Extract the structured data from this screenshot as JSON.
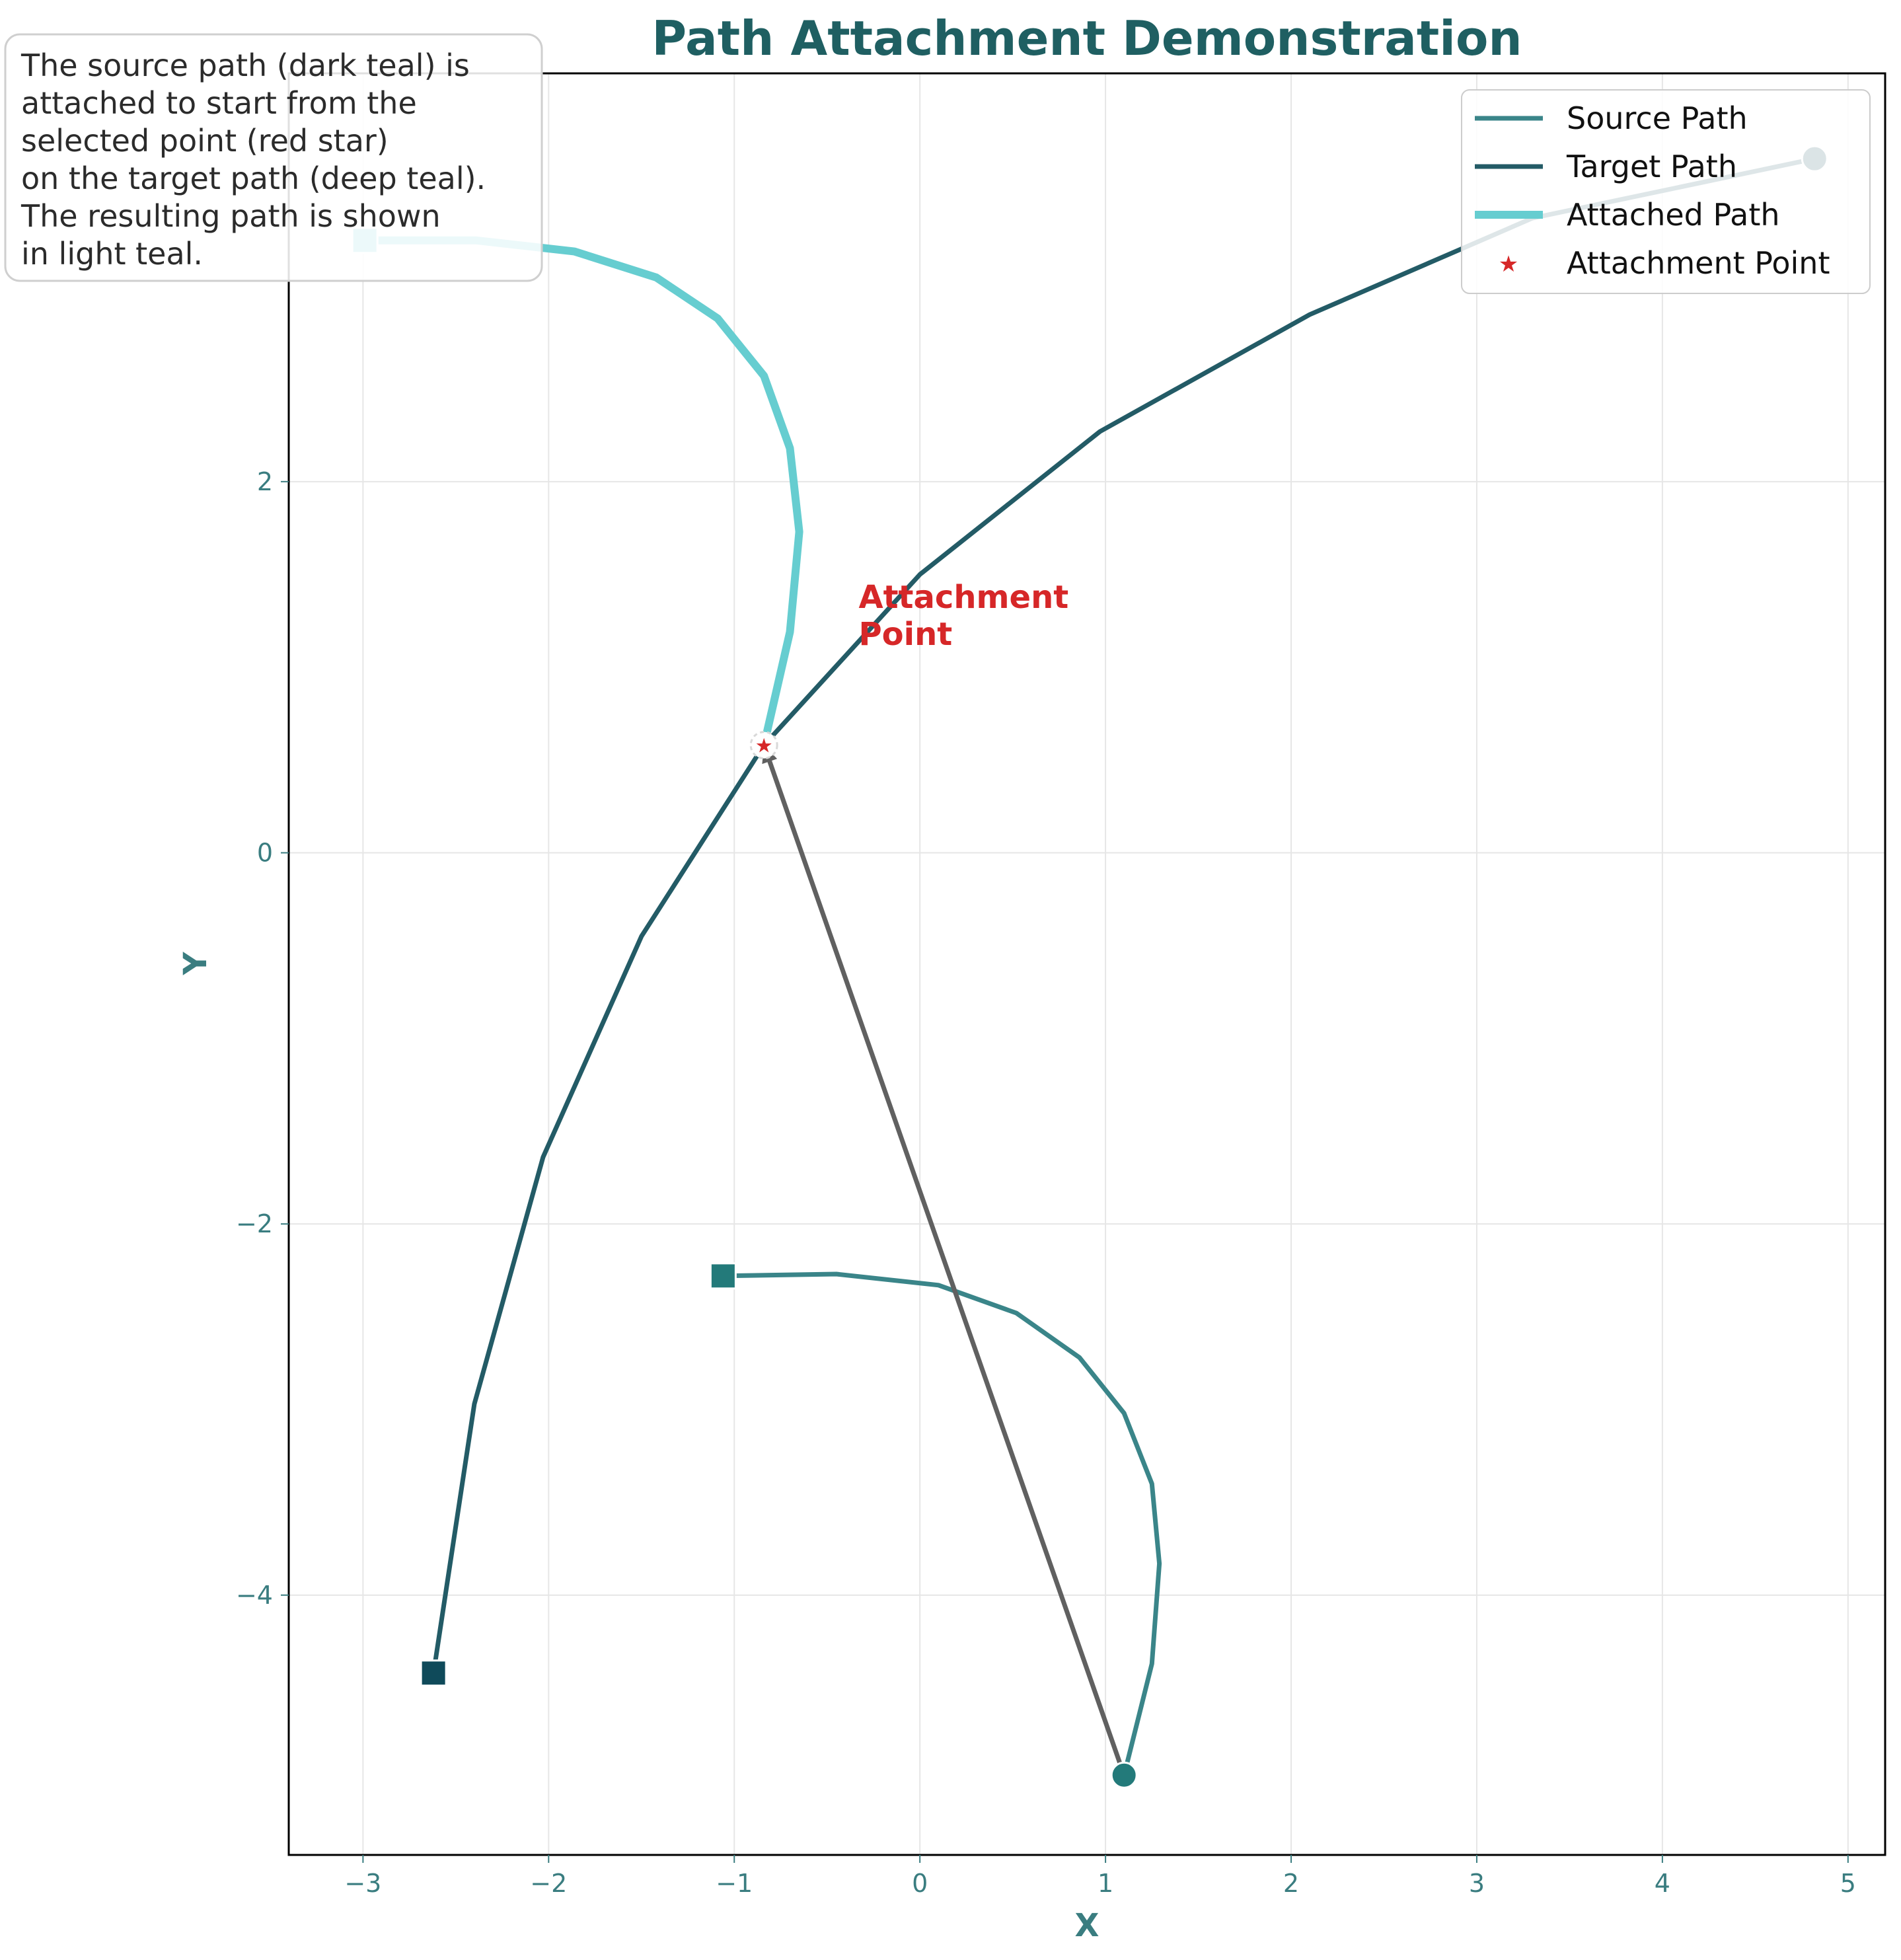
{
  "chart_data": {
    "type": "line",
    "title": "Path Attachment Demonstration",
    "xlabel": "X",
    "ylabel": "Y",
    "xlim": [
      -3.4,
      5.2
    ],
    "ylim": [
      -5.4,
      4.2
    ],
    "xticks": [
      -3,
      -2,
      -1,
      0,
      1,
      2,
      3,
      4,
      5
    ],
    "yticks": [
      -4,
      -2,
      0,
      2
    ],
    "xtick_labels": [
      "−3",
      "−2",
      "−1",
      "0",
      "1",
      "2",
      "3",
      "4",
      "5"
    ],
    "ytick_labels": [
      "−4",
      "−2",
      "0",
      "2"
    ],
    "grid": true,
    "legend_position": "top-right",
    "series": [
      {
        "name": "Source Path",
        "color": "#3a8589",
        "points": [
          [
            -1.06,
            -2.28
          ],
          [
            -0.45,
            -2.27
          ],
          [
            0.1,
            -2.33
          ],
          [
            0.52,
            -2.48
          ],
          [
            0.86,
            -2.72
          ],
          [
            1.1,
            -3.02
          ],
          [
            1.25,
            -3.4
          ],
          [
            1.29,
            -3.83
          ],
          [
            1.25,
            -4.37
          ],
          [
            1.1,
            -4.97
          ]
        ]
      },
      {
        "name": "Target Path",
        "color": "#235b66",
        "points": [
          [
            -2.62,
            -4.42
          ],
          [
            -2.4,
            -2.97
          ],
          [
            -2.03,
            -1.64
          ],
          [
            -1.5,
            -0.45
          ],
          [
            -0.84,
            0.58
          ],
          [
            0.0,
            1.5
          ],
          [
            0.97,
            2.27
          ],
          [
            2.1,
            2.9
          ],
          [
            3.3,
            3.42
          ],
          [
            4.82,
            3.74
          ]
        ]
      },
      {
        "name": "Attached Path",
        "color": "#66cdd0",
        "points": [
          [
            -0.84,
            0.58
          ],
          [
            -0.7,
            1.19
          ],
          [
            -0.65,
            1.73
          ],
          [
            -0.7,
            2.18
          ],
          [
            -0.84,
            2.57
          ],
          [
            -1.09,
            2.88
          ],
          [
            -1.42,
            3.1
          ],
          [
            -1.86,
            3.24
          ],
          [
            -2.39,
            3.3
          ],
          [
            -2.99,
            3.3
          ]
        ]
      }
    ],
    "attachment_point": {
      "name": "Attachment Point",
      "x": -0.84,
      "y": 0.58,
      "color": "#d62728"
    },
    "arrow": {
      "from": [
        1.1,
        -4.97
      ],
      "to": [
        -0.84,
        0.58
      ],
      "color": "#606060"
    },
    "annotation": {
      "lines": [
        "Attachment",
        "Point"
      ],
      "x": -0.33,
      "y": 1.22
    },
    "info_box": {
      "lines": [
        "The source path (dark teal) is",
        "attached to start from the",
        "selected point (red star)",
        "on the target path (deep teal).",
        "The resulting path is shown",
        "in light teal."
      ]
    },
    "start_markers": [
      {
        "series": "Source Path",
        "x": -1.06,
        "y": -2.28,
        "shape": "square",
        "color": "#237a7a"
      },
      {
        "series": "Target Path",
        "x": -2.62,
        "y": -4.42,
        "shape": "square",
        "color": "#0f4a5a"
      },
      {
        "series": "Attached Path",
        "x": -2.99,
        "y": 3.3,
        "shape": "square",
        "color": "#66cdd0"
      }
    ],
    "end_markers": [
      {
        "series": "Source Path",
        "x": 1.1,
        "y": -4.97,
        "shape": "circle",
        "color": "#237a7a"
      },
      {
        "series": "Target Path",
        "x": 4.82,
        "y": 3.74,
        "shape": "circle",
        "color": "#0f4a5a"
      }
    ]
  }
}
